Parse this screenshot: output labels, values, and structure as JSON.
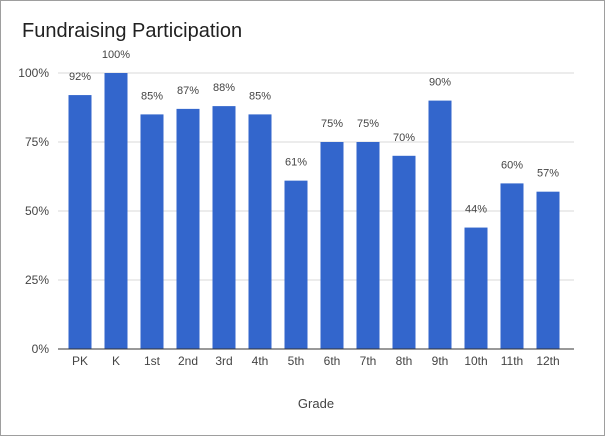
{
  "chart_data": {
    "type": "bar",
    "title": "Fundraising Participation",
    "xlabel": "Grade",
    "ylabel": "",
    "ylim": [
      0,
      100
    ],
    "yticks": [
      0,
      25,
      50,
      75,
      100
    ],
    "ytick_labels": [
      "0%",
      "25%",
      "50%",
      "75%",
      "100%"
    ],
    "categories": [
      "PK",
      "K",
      "1st",
      "2nd",
      "3rd",
      "4th",
      "5th",
      "6th",
      "7th",
      "8th",
      "9th",
      "10th",
      "11th",
      "12th"
    ],
    "values": [
      92,
      100,
      85,
      87,
      88,
      85,
      61,
      75,
      75,
      70,
      90,
      44,
      60,
      57
    ],
    "data_labels": [
      "92%",
      "100%",
      "85%",
      "87%",
      "88%",
      "85%",
      "61%",
      "75%",
      "75%",
      "70%",
      "90%",
      "44%",
      "60%",
      "57%"
    ],
    "bar_color": "#3366cc",
    "grid": true,
    "legend": "none"
  }
}
